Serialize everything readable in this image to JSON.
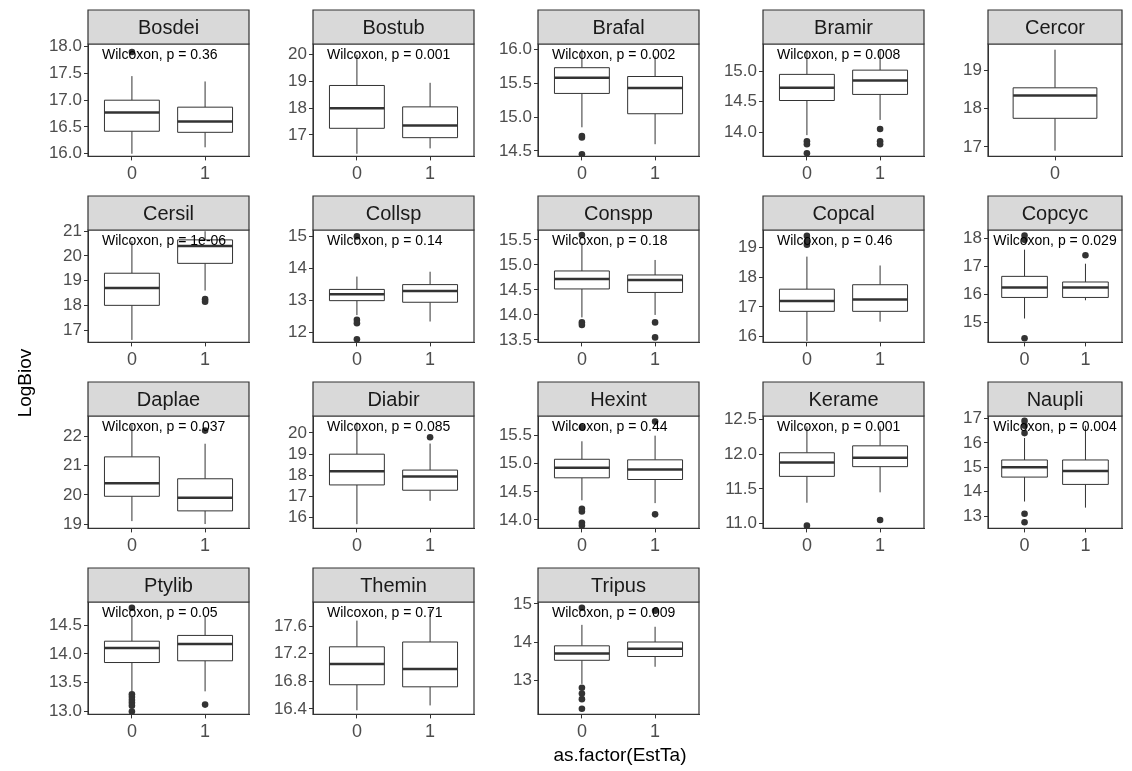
{
  "chart_data": [
    {
      "type": "box",
      "title": "Bosdei",
      "annotations": [
        "Wilcoxon, p = 0.36"
      ],
      "categories": [
        "0",
        "1"
      ],
      "ylim": [
        15.95,
        18.05
      ],
      "yticks": [
        {
          "value": 16,
          "label": "16.0"
        },
        16.5,
        {
          "value": 17,
          "label": "17.0"
        },
        17.5,
        {
          "value": 18,
          "label": "18.0"
        }
      ],
      "boxes": [
        {
          "low": 16.0,
          "q1": 16.42,
          "median": 16.77,
          "q3": 17.0,
          "high": 17.45,
          "outliers": [
            17.9
          ]
        },
        {
          "low": 16.12,
          "q1": 16.4,
          "median": 16.6,
          "q3": 16.87,
          "high": 17.35
        }
      ]
    },
    {
      "type": "box",
      "title": "Bostub",
      "annotations": [
        "Wilcoxon, p = 0.001"
      ],
      "categories": [
        "0",
        "1"
      ],
      "ylim": [
        16.2,
        20.4
      ],
      "yticks": [
        17,
        18,
        19,
        20
      ],
      "boxes": [
        {
          "low": 16.3,
          "q1": 17.25,
          "median": 18.0,
          "q3": 18.85,
          "high": 20.0
        },
        {
          "low": 16.5,
          "q1": 16.9,
          "median": 17.35,
          "q3": 18.05,
          "high": 18.95
        }
      ]
    },
    {
      "type": "box",
      "title": "Brafal",
      "annotations": [
        "Wilcoxon, p = 0.002"
      ],
      "categories": [
        "0",
        "1"
      ],
      "ylim": [
        14.42,
        16.08
      ],
      "yticks": [
        14.5,
        {
          "value": 15,
          "label": "15.0"
        },
        15.5,
        {
          "value": 16,
          "label": "16.0"
        }
      ],
      "boxes": [
        {
          "low": 14.85,
          "q1": 15.35,
          "median": 15.58,
          "q3": 15.73,
          "high": 16.0,
          "outliers": [
            14.72,
            14.7,
            14.45
          ]
        },
        {
          "low": 14.6,
          "q1": 15.05,
          "median": 15.43,
          "q3": 15.6,
          "high": 15.9
        }
      ]
    },
    {
      "type": "box",
      "title": "Bramir",
      "annotations": [
        "Wilcoxon, p = 0.008"
      ],
      "categories": [
        "0",
        "1"
      ],
      "ylim": [
        13.6,
        15.45
      ],
      "yticks": [
        {
          "value": 14,
          "label": "14.0"
        },
        14.5,
        {
          "value": 15,
          "label": "15.0"
        }
      ],
      "boxes": [
        {
          "low": 13.95,
          "q1": 14.52,
          "median": 14.73,
          "q3": 14.95,
          "high": 15.35,
          "outliers": [
            13.85,
            13.8,
            13.65
          ]
        },
        {
          "low": 14.2,
          "q1": 14.62,
          "median": 14.85,
          "q3": 15.02,
          "high": 15.35,
          "outliers": [
            14.05,
            13.85,
            13.8
          ]
        }
      ]
    },
    {
      "type": "box",
      "title": "Cercor",
      "categories": [
        "0"
      ],
      "ylim": [
        16.75,
        19.7
      ],
      "yticks": [
        17,
        18,
        19
      ],
      "boxes": [
        {
          "low": 16.9,
          "q1": 17.75,
          "median": 18.35,
          "q3": 18.55,
          "high": 19.55
        }
      ]
    },
    {
      "type": "box",
      "title": "Cersil",
      "annotations": [
        "Wilcoxon, p = 1e-06"
      ],
      "categories": [
        "0",
        "1"
      ],
      "ylim": [
        16.5,
        21.05
      ],
      "yticks": [
        17,
        18,
        19,
        20,
        21
      ],
      "boxes": [
        {
          "low": 16.6,
          "q1": 18.0,
          "median": 18.7,
          "q3": 19.3,
          "high": 20.6
        },
        {
          "low": 18.6,
          "q1": 19.7,
          "median": 20.4,
          "q3": 20.65,
          "high": 21.0,
          "outliers": [
            18.25,
            18.15
          ]
        }
      ]
    },
    {
      "type": "box",
      "title": "Collsp",
      "annotations": [
        "Wilcoxon, p = 0.14"
      ],
      "categories": [
        "0",
        "1"
      ],
      "ylim": [
        11.7,
        15.2
      ],
      "yticks": [
        12,
        13,
        14,
        15
      ],
      "boxes": [
        {
          "low": 12.55,
          "q1": 13.0,
          "median": 13.2,
          "q3": 13.35,
          "high": 13.75,
          "outliers": [
            12.4,
            12.3,
            11.8,
            15.0
          ]
        },
        {
          "low": 12.35,
          "q1": 12.95,
          "median": 13.3,
          "q3": 13.5,
          "high": 13.9
        }
      ]
    },
    {
      "type": "box",
      "title": "Conspp",
      "annotations": [
        "Wilcoxon, p = 0.18"
      ],
      "categories": [
        "0",
        "1"
      ],
      "ylim": [
        13.45,
        15.7
      ],
      "yticks": [
        13.5,
        {
          "value": 14,
          "label": "14.0"
        },
        14.5,
        {
          "value": 15,
          "label": "15.0"
        },
        15.5
      ],
      "boxes": [
        {
          "low": 13.95,
          "q1": 14.52,
          "median": 14.72,
          "q3": 14.88,
          "high": 15.45,
          "outliers": [
            13.85,
            13.8,
            15.6
          ]
        },
        {
          "low": 14.0,
          "q1": 14.45,
          "median": 14.7,
          "q3": 14.8,
          "high": 15.1,
          "outliers": [
            13.85,
            13.55
          ]
        }
      ]
    },
    {
      "type": "box",
      "title": "Copcal",
      "annotations": [
        "Wilcoxon, p = 0.46"
      ],
      "categories": [
        "0",
        "1"
      ],
      "ylim": [
        15.8,
        19.6
      ],
      "yticks": [
        16,
        17,
        18,
        19
      ],
      "boxes": [
        {
          "low": 15.85,
          "q1": 16.85,
          "median": 17.2,
          "q3": 17.6,
          "high": 18.7,
          "outliers": [
            19.1,
            19.2,
            19.4
          ]
        },
        {
          "low": 16.5,
          "q1": 16.85,
          "median": 17.25,
          "q3": 17.75,
          "high": 18.4
        }
      ]
    },
    {
      "type": "box",
      "title": "Copcyc",
      "annotations": [
        "Wilcoxon, p = 0.029"
      ],
      "categories": [
        "0",
        "1"
      ],
      "ylim": [
        14.3,
        18.3
      ],
      "yticks": [
        15,
        16,
        17,
        18
      ],
      "boxes": [
        {
          "low": 15.15,
          "q1": 15.9,
          "median": 16.25,
          "q3": 16.65,
          "high": 17.6,
          "outliers": [
            14.45,
            17.95,
            18.1
          ]
        },
        {
          "low": 15.8,
          "q1": 15.9,
          "median": 16.25,
          "q3": 16.45,
          "high": 17.1,
          "outliers": [
            17.4
          ]
        }
      ]
    },
    {
      "type": "box",
      "title": "Daplae",
      "ylabel": "LogBiov",
      "annotations": [
        "Wilcoxon, p = 0.037"
      ],
      "categories": [
        "0",
        "1"
      ],
      "ylim": [
        18.85,
        22.7
      ],
      "yticks": [
        19,
        20,
        21,
        22
      ],
      "boxes": [
        {
          "low": 19.1,
          "q1": 19.95,
          "median": 20.4,
          "q3": 21.3,
          "high": 22.4
        },
        {
          "low": 19.0,
          "q1": 19.45,
          "median": 19.9,
          "q3": 20.55,
          "high": 21.75,
          "outliers": [
            22.2
          ]
        }
      ]
    },
    {
      "type": "box",
      "title": "Diabir",
      "annotations": [
        "Wilcoxon, p = 0.085"
      ],
      "categories": [
        "0",
        "1"
      ],
      "ylim": [
        15.5,
        20.8
      ],
      "yticks": [
        16,
        17,
        18,
        19,
        20
      ],
      "boxes": [
        {
          "low": 15.7,
          "q1": 17.55,
          "median": 18.2,
          "q3": 19.0,
          "high": 20.5
        },
        {
          "low": 16.8,
          "q1": 17.3,
          "median": 17.95,
          "q3": 18.25,
          "high": 19.5,
          "outliers": [
            19.8
          ]
        }
      ]
    },
    {
      "type": "box",
      "title": "Hexint",
      "annotations": [
        "Wilcoxon, p = 0.44"
      ],
      "categories": [
        "0",
        "1"
      ],
      "ylim": [
        13.85,
        15.85
      ],
      "yticks": [
        {
          "value": 14,
          "label": "14.0"
        },
        14.5,
        {
          "value": 15,
          "label": "15.0"
        },
        15.5
      ],
      "boxes": [
        {
          "low": 14.35,
          "q1": 14.75,
          "median": 14.93,
          "q3": 15.08,
          "high": 15.4,
          "outliers": [
            14.2,
            14.15,
            13.95,
            13.9,
            15.65
          ]
        },
        {
          "low": 14.3,
          "q1": 14.72,
          "median": 14.9,
          "q3": 15.07,
          "high": 15.5,
          "outliers": [
            14.1,
            15.75
          ]
        }
      ]
    },
    {
      "type": "box",
      "title": "Kerame",
      "annotations": [
        "Wilcoxon, p = 0.001"
      ],
      "categories": [
        "0",
        "1"
      ],
      "ylim": [
        10.93,
        12.55
      ],
      "yticks": [
        {
          "value": 11,
          "label": "11.0"
        },
        11.5,
        {
          "value": 12,
          "label": "12.0"
        },
        12.5
      ],
      "boxes": [
        {
          "low": 11.3,
          "q1": 11.68,
          "median": 11.88,
          "q3": 12.02,
          "high": 12.4,
          "outliers": [
            10.97
          ]
        },
        {
          "low": 11.45,
          "q1": 11.82,
          "median": 11.95,
          "q3": 12.12,
          "high": 12.4,
          "outliers": [
            11.05
          ]
        }
      ]
    },
    {
      "type": "box",
      "title": "Naupli",
      "annotations": [
        "Wilcoxon, p = 0.004"
      ],
      "categories": [
        "0",
        "1"
      ],
      "ylim": [
        12.5,
        17.1
      ],
      "yticks": [
        13,
        14,
        15,
        16,
        17
      ],
      "boxes": [
        {
          "low": 13.6,
          "q1": 14.6,
          "median": 15.0,
          "q3": 15.3,
          "high": 16.2,
          "outliers": [
            13.1,
            12.75,
            16.4,
            16.7,
            16.9
          ]
        },
        {
          "low": 13.35,
          "q1": 14.3,
          "median": 14.85,
          "q3": 15.3,
          "high": 16.7
        }
      ]
    },
    {
      "type": "box",
      "title": "Ptylib",
      "annotations": [
        "Wilcoxon, p = 0.05"
      ],
      "categories": [
        "0",
        "1"
      ],
      "ylim": [
        12.95,
        14.9
      ],
      "yticks": [
        {
          "value": 13,
          "label": "13.0"
        },
        13.5,
        {
          "value": 14,
          "label": "14.0"
        },
        14.5
      ],
      "boxes": [
        {
          "low": 13.35,
          "q1": 13.85,
          "median": 14.1,
          "q3": 14.22,
          "high": 14.65,
          "outliers": [
            13.3,
            13.25,
            13.2,
            13.15,
            13.1,
            13.0,
            14.8
          ]
        },
        {
          "low": 13.35,
          "q1": 13.88,
          "median": 14.17,
          "q3": 14.32,
          "high": 14.65,
          "outliers": [
            13.12
          ]
        }
      ]
    },
    {
      "type": "box",
      "title": "Themin",
      "annotations": [
        "Wilcoxon, p = 0.71"
      ],
      "categories": [
        "0",
        "1"
      ],
      "ylim": [
        16.32,
        17.95
      ],
      "yticks": [
        16.4,
        16.8,
        17.2,
        17.6
      ],
      "boxes": [
        {
          "low": 16.38,
          "q1": 16.75,
          "median": 17.05,
          "q3": 17.3,
          "high": 17.68
        },
        {
          "low": 16.45,
          "q1": 16.72,
          "median": 16.98,
          "q3": 17.37,
          "high": 17.85
        }
      ]
    },
    {
      "type": "box",
      "title": "Tripus",
      "xlabel": "as.factor(EstTa)",
      "annotations": [
        "Wilcoxon, p = 0.009"
      ],
      "categories": [
        "0",
        "1"
      ],
      "ylim": [
        12.1,
        15.05
      ],
      "yticks": [
        13,
        14,
        15
      ],
      "boxes": [
        {
          "low": 12.9,
          "q1": 13.52,
          "median": 13.7,
          "q3": 13.9,
          "high": 14.45,
          "outliers": [
            12.8,
            12.65,
            12.5,
            12.25,
            14.9
          ]
        },
        {
          "low": 13.35,
          "q1": 13.62,
          "median": 13.82,
          "q3": 14.0,
          "high": 14.4,
          "outliers": [
            14.82
          ]
        }
      ]
    }
  ]
}
